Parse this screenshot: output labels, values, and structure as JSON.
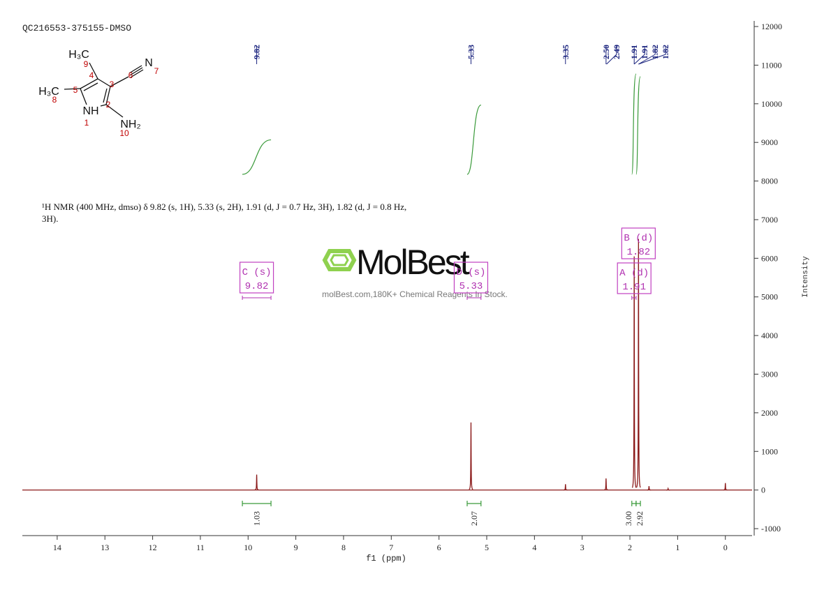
{
  "chart_data": {
    "type": "nmr",
    "title": "QC216553-375155-DMSO",
    "annotation": "¹H NMR (400 MHz, dmso) δ 9.82 (s, 1H), 5.33 (s, 2H), 1.91 (d, J = 0.7 Hz, 3H), 1.82 (d, J = 0.8 Hz, 3H).",
    "x_label": "f1 (ppm)",
    "y_label": "Intensity",
    "xlim": [
      14.73,
      -0.56
    ],
    "ylim": [
      -1180,
      12145
    ],
    "xticks": [
      14,
      13,
      12,
      11,
      10,
      9,
      8,
      7,
      6,
      5,
      4,
      3,
      2,
      1,
      0
    ],
    "yticks": [
      12000,
      11000,
      10000,
      9000,
      8000,
      7000,
      6000,
      5000,
      4000,
      3000,
      2000,
      1000,
      0,
      -1000
    ],
    "peaks": {
      "color": "#8b1a1a",
      "x": [
        9.82,
        5.33,
        3.35,
        2.5,
        1.91,
        1.82,
        1.6,
        1.2,
        0
      ],
      "values": [
        400,
        1750,
        150,
        300,
        6050,
        6500,
        100,
        40,
        180
      ]
    },
    "peak_labels": [
      9.82,
      5.33,
      3.35,
      {
        "value": 2.5,
        "label": "2.50"
      },
      2.49,
      1.91,
      1.91,
      1.82,
      1.82
    ],
    "integrals": [
      {
        "range": [
          10.12,
          9.52
        ],
        "value": 1.03
      },
      {
        "range": [
          5.41,
          5.12
        ],
        "value": 2.07
      },
      {
        "range": [
          1.96,
          1.87
        ],
        "value": 3.0,
        "label": "3.00"
      },
      {
        "range": [
          1.87,
          1.78
        ],
        "value": 2.92
      }
    ],
    "multiplets": [
      {
        "name": "C (s)",
        "shift": 9.82,
        "range": [
          10.12,
          9.52
        ]
      },
      {
        "name": "D (s)",
        "shift": 5.33,
        "range": [
          5.41,
          5.12
        ]
      },
      {
        "name": "A (d)",
        "shift": 1.91,
        "range": [
          1.96,
          1.87
        ]
      },
      {
        "name": "B (d)",
        "shift": 1.82,
        "range": [
          1.87,
          1.78
        ]
      }
    ],
    "watermark": {
      "brand": "MolBest",
      "slogan": "molBest.com,180K+ Chemical Reagents In Stock."
    },
    "structure": {
      "atoms": [
        "H₃C",
        "N",
        "H₃C",
        "NH",
        "NH₂"
      ],
      "numbers": [
        "9",
        "4",
        "3",
        "6",
        "7",
        "5",
        "8",
        "2",
        "1",
        "10"
      ]
    }
  }
}
